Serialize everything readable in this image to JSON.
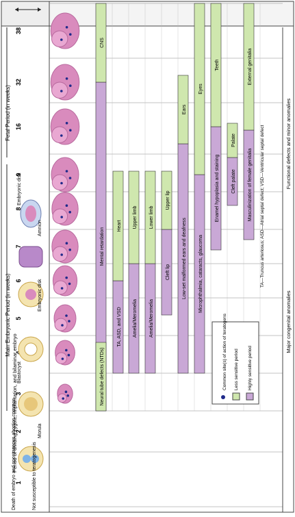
{
  "weeks": [
    "1",
    "2",
    "3",
    "4",
    "5",
    "6",
    "7",
    "8",
    "9",
    "16",
    "32",
    "38"
  ],
  "main_embryonic_period": "Main Embryonic Period (in weeks)",
  "fetal_period": "Fetal Period (in weeks)",
  "early": {
    "description": "Period of dividing zygote, implantation, and bilaminar embryo",
    "labels": {
      "embryonic_disk_top": "Embryonic disk",
      "morula": "Morula",
      "amnion": "Amnion",
      "blastocyst": "Blastocyst",
      "embryonic_disk_bottom": "Embryonic disk"
    },
    "not_susceptible": "Not susceptible to teratogenesis",
    "death": "Death of embryo and spontaneous abortion common"
  },
  "rows": [
    {
      "name": "CNS",
      "light": "Neural tube defects (NTDs)",
      "dark": "Mental retardation",
      "lightAlt": "CNS"
    },
    {
      "name": "Heart",
      "dark": "TA, ASD, and VSD",
      "light": "Heart"
    },
    {
      "name": "Upper limb",
      "dark": "Amelia/Meromelia",
      "light": "Upper limb"
    },
    {
      "name": "Lower limb",
      "dark": "Amelia/Meromelia",
      "light": "Lower limb"
    },
    {
      "name": "Upper lip",
      "dark": "Cleft lip",
      "light": "Upper lip"
    },
    {
      "name": "Ears",
      "dark": "Low-set malformed ears and deafness",
      "light": "Ears"
    },
    {
      "name": "Eyes",
      "dark": "Microphthalmia, cataracts, glaucoma",
      "light": "Eyes"
    },
    {
      "name": "Teeth",
      "dark": "Enamel hypoplasia and staining",
      "light": "Teeth"
    },
    {
      "name": "Palate",
      "dark": "Cleft palate",
      "light": "Palate"
    },
    {
      "name": "External genitalia",
      "dark": "Masculinization of female genitalia",
      "light": "External genitalia"
    }
  ],
  "legend": {
    "site": "Common site(s) of action of teratogens",
    "less": "Less sensitive period",
    "highly": "Highly sensitive period"
  },
  "abbreviations": "TA—Truncus arteriosus; ASD—Atrial septal defect; VSD—Ventricular septal defect",
  "bottom": {
    "major": "Major congenital anomalies",
    "functional": "Functional defects and minor anomalies"
  },
  "colors": {
    "light": "#cfe7ae",
    "dark": "#c9a8d6",
    "embryo": "#d98bbd",
    "dot": "#1f2a8a"
  }
}
